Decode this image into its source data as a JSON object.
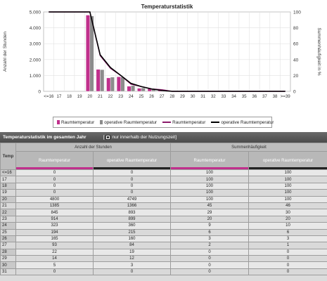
{
  "chart_data": {
    "type": "bar",
    "title": "Temperaturstatistik",
    "ylabel_left": "Anzahl der Stunden",
    "ylabel_right": "Summenhäufigkeit in %",
    "ylim_left": [
      0,
      5000
    ],
    "ylim_right": [
      0,
      100
    ],
    "yticks_left": [
      "0",
      "1.000",
      "2.000",
      "3.000",
      "4.000",
      "5.000"
    ],
    "yticks_right": [
      "0",
      "20",
      "40",
      "60",
      "80",
      "100"
    ],
    "categories": [
      "<=16",
      "17",
      "18",
      "19",
      "20",
      "21",
      "22",
      "23",
      "24",
      "25",
      "26",
      "27",
      "28",
      "29",
      "30",
      "31",
      "32",
      "33",
      "34",
      "35",
      "36",
      "37",
      "38",
      ">=39"
    ],
    "series": [
      {
        "name": "Raumtemperatur",
        "kind": "bar",
        "color": "#c0308c",
        "values": [
          0,
          0,
          0,
          0,
          4800,
          1385,
          845,
          914,
          323,
          194,
          165,
          93,
          22,
          14,
          5,
          0,
          0,
          0,
          0,
          0,
          0,
          0,
          0,
          0
        ]
      },
      {
        "name": "operative Raumtemperatur",
        "kind": "bar",
        "color": "#8c8c8c",
        "values": [
          0,
          0,
          0,
          0,
          4749,
          1366,
          893,
          899,
          360,
          215,
          160,
          84,
          19,
          12,
          3,
          0,
          0,
          0,
          0,
          0,
          0,
          0,
          0,
          0
        ]
      },
      {
        "name": "Raumtemperatur",
        "kind": "line",
        "axis": "right",
        "color": "#8b1a6b",
        "values": [
          100,
          100,
          100,
          100,
          100,
          45,
          29,
          20,
          9,
          6,
          3,
          2,
          0,
          0,
          0,
          0,
          0,
          0,
          0,
          0,
          0,
          0,
          0,
          0
        ]
      },
      {
        "name": "operative Raumtemperatur",
        "kind": "line",
        "axis": "right",
        "color": "#000000",
        "values": [
          100,
          100,
          100,
          100,
          100,
          46,
          30,
          20,
          10,
          6,
          3,
          1,
          0,
          0,
          0,
          0,
          0,
          0,
          0,
          0,
          0,
          0,
          0,
          0
        ]
      }
    ],
    "grid": true,
    "legend_position": "bottom"
  },
  "legend": {
    "items": [
      {
        "label": "Raumtemperatur",
        "type": "bar",
        "color": "#c0308c"
      },
      {
        "label": "operative Raumtemperatur",
        "type": "bar",
        "color": "#8c8c8c"
      },
      {
        "label": "Raumtemperatur",
        "type": "line",
        "color": "#8b1a6b"
      },
      {
        "label": "operative Raumtemperatur",
        "type": "line",
        "color": "#000000"
      }
    ]
  },
  "table": {
    "title": "Temperaturstatistik im gesamten Jahr",
    "option_label": "nur innerhalb der Nutzungszeit",
    "option_checked": true,
    "temp_header": "Temp",
    "group_hours": "Anzahl der Stunden",
    "group_cumulative": "Summenhäufigkeit",
    "col_room": "Raumtemperatur",
    "col_operative": "operative Raumtemperatur",
    "rows": [
      {
        "t": "<=16",
        "h1": "0",
        "h2": "0",
        "c1": "100",
        "c2": "100"
      },
      {
        "t": "17",
        "h1": "0",
        "h2": "0",
        "c1": "100",
        "c2": "100"
      },
      {
        "t": "18",
        "h1": "0",
        "h2": "0",
        "c1": "100",
        "c2": "100"
      },
      {
        "t": "19",
        "h1": "0",
        "h2": "0",
        "c1": "100",
        "c2": "100"
      },
      {
        "t": "20",
        "h1": "4800",
        "h2": "4749",
        "c1": "100",
        "c2": "100"
      },
      {
        "t": "21",
        "h1": "1385",
        "h2": "1366",
        "c1": "45",
        "c2": "46"
      },
      {
        "t": "22",
        "h1": "845",
        "h2": "893",
        "c1": "29",
        "c2": "30"
      },
      {
        "t": "23",
        "h1": "914",
        "h2": "899",
        "c1": "20",
        "c2": "20"
      },
      {
        "t": "24",
        "h1": "323",
        "h2": "360",
        "c1": "9",
        "c2": "10"
      },
      {
        "t": "25",
        "h1": "194",
        "h2": "215",
        "c1": "6",
        "c2": "6"
      },
      {
        "t": "26",
        "h1": "165",
        "h2": "160",
        "c1": "3",
        "c2": "3"
      },
      {
        "t": "27",
        "h1": "93",
        "h2": "84",
        "c1": "2",
        "c2": "1"
      },
      {
        "t": "28",
        "h1": "22",
        "h2": "19",
        "c1": "0",
        "c2": "0"
      },
      {
        "t": "29",
        "h1": "14",
        "h2": "12",
        "c1": "0",
        "c2": "0"
      },
      {
        "t": "30",
        "h1": "5",
        "h2": "3",
        "c1": "0",
        "c2": "0"
      },
      {
        "t": "31",
        "h1": "0",
        "h2": "0",
        "c1": "0",
        "c2": "0"
      }
    ]
  }
}
